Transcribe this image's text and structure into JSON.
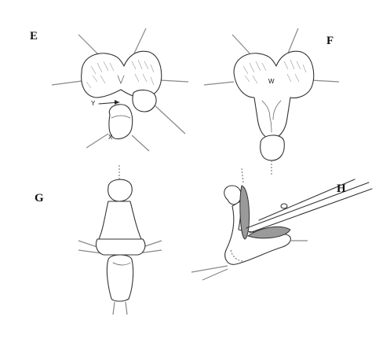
{
  "figure": {
    "panels": [
      {
        "id": "E",
        "label": "E"
      },
      {
        "id": "F",
        "label": "F"
      },
      {
        "id": "G",
        "label": "G"
      },
      {
        "id": "H",
        "label": "H"
      }
    ],
    "annotations": {
      "Y": "Y",
      "X": "X",
      "W": "W"
    }
  }
}
